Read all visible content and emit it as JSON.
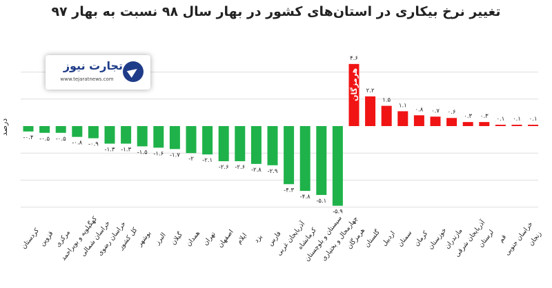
{
  "chart_data": {
    "type": "bar",
    "title": "تغییر نرخ بیکاری در استان‌های کشور در بهار سال ۹۸ نسبت به بهار ۹۷",
    "ylabel": "درصد",
    "xlabel": "",
    "colors": {
      "negative": "#1fb24a",
      "positive": "#f01414",
      "gridline": "#dddddd"
    },
    "categories": [
      "کردستان",
      "قزوین",
      "مرکزی",
      "کهگیلویه و بویراحمد",
      "خراسان شمالی",
      "خراسان رضوی",
      "کل کشور",
      "بوشهر",
      "البرز",
      "گیلان",
      "همدان",
      "تهران",
      "اصفهان",
      "ایلام",
      "یزد",
      "فارس",
      "آذربایجان غربی",
      "کرمانشاه",
      "سیستان و بلوچستان",
      "چهارمحال و بختیاری",
      "هرمزگان",
      "گلستان",
      "اردبیل",
      "سمنان",
      "کرمان",
      "خوزستان",
      "مازندران",
      "آذربایجان شرقی",
      "لرستان",
      "قم",
      "خراسان جنوبی",
      "زنجان"
    ],
    "values": [
      -0.4,
      -0.5,
      -0.5,
      -0.8,
      -0.9,
      -1.3,
      -1.3,
      -1.5,
      -1.6,
      -1.7,
      -2,
      -2.1,
      -2.6,
      -2.6,
      -2.8,
      -2.9,
      -4.3,
      -4.8,
      -5.1,
      -5.9,
      4.6,
      2.2,
      1.5,
      1.1,
      0.8,
      0.7,
      0.6,
      0.3,
      0.3,
      0.1,
      0.1,
      0.1
    ],
    "value_labels": [
      "-۰.۴",
      "-۰.۵",
      "-۰.۵",
      "-۰.۸",
      "-۰.۹",
      "-۱.۳",
      "-۱.۳",
      "-۱.۵",
      "-۱.۶",
      "-۱.۷",
      "-۲",
      "-۲.۱",
      "-۲.۶",
      "-۲.۶",
      "-۲.۸",
      "-۲.۹",
      "-۴.۳",
      "-۴.۸",
      "-۵.۱",
      "-۵.۹",
      "۴.۶",
      "۲.۲",
      "۱.۵",
      "۱.۱",
      "۰.۸",
      "۰.۷",
      "۰.۶",
      "۰.۳",
      "۰.۳",
      "۰.۱",
      "۰.۱",
      "۰.۱"
    ],
    "annotation": {
      "category": "هرمزگان",
      "text": "هرمزگان"
    },
    "grid": true
  },
  "logo": {
    "name": "تجارت نیوز",
    "url": "www.tejaratnews.com"
  }
}
